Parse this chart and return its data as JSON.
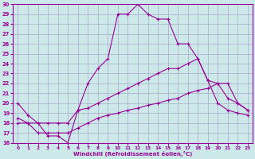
{
  "xlabel": "Windchill (Refroidissement éolien,°C)",
  "ylabel": "",
  "background_color": "#cce8e8",
  "line_color": "#990099",
  "grid_color": "#aaaacc",
  "xlim": [
    -0.5,
    23.5
  ],
  "ylim": [
    16,
    30
  ],
  "xticks": [
    0,
    1,
    2,
    3,
    4,
    5,
    6,
    7,
    8,
    9,
    10,
    11,
    12,
    13,
    14,
    15,
    16,
    17,
    18,
    19,
    20,
    21,
    22,
    23
  ],
  "yticks": [
    16,
    17,
    18,
    19,
    20,
    21,
    22,
    23,
    24,
    25,
    26,
    27,
    28,
    29,
    30
  ],
  "line1_x": [
    0,
    1,
    2,
    3,
    4,
    5,
    6,
    7,
    8,
    9,
    10,
    11,
    12,
    13,
    14,
    15,
    16,
    17,
    18,
    19,
    20,
    21,
    22,
    23
  ],
  "line1_y": [
    20.0,
    18.8,
    18.0,
    16.7,
    16.7,
    16.0,
    19.3,
    22.0,
    23.5,
    24.5,
    29.0,
    29.0,
    30.0,
    29.0,
    28.5,
    28.5,
    26.0,
    26.0,
    24.5,
    22.3,
    20.0,
    19.3,
    19.0,
    18.8
  ],
  "line2_x": [
    0,
    1,
    2,
    3,
    4,
    5,
    6,
    7,
    8,
    9,
    10,
    11,
    12,
    13,
    14,
    15,
    16,
    17,
    18,
    19,
    20,
    21,
    22,
    23
  ],
  "line2_y": [
    18.5,
    18.0,
    18.0,
    18.0,
    18.0,
    18.0,
    19.3,
    19.5,
    20.0,
    20.5,
    21.0,
    21.5,
    22.0,
    22.5,
    23.0,
    23.5,
    23.5,
    24.0,
    24.5,
    22.3,
    22.0,
    22.0,
    20.0,
    19.3
  ],
  "line3_x": [
    0,
    1,
    2,
    3,
    4,
    5,
    6,
    7,
    8,
    9,
    10,
    11,
    12,
    13,
    14,
    15,
    16,
    17,
    18,
    19,
    20,
    21,
    22,
    23
  ],
  "line3_y": [
    18.0,
    18.0,
    17.0,
    17.0,
    17.0,
    17.0,
    17.5,
    18.0,
    18.5,
    18.8,
    19.0,
    19.3,
    19.5,
    19.8,
    20.0,
    20.3,
    20.5,
    21.0,
    21.3,
    21.5,
    22.0,
    20.5,
    20.0,
    19.3
  ]
}
